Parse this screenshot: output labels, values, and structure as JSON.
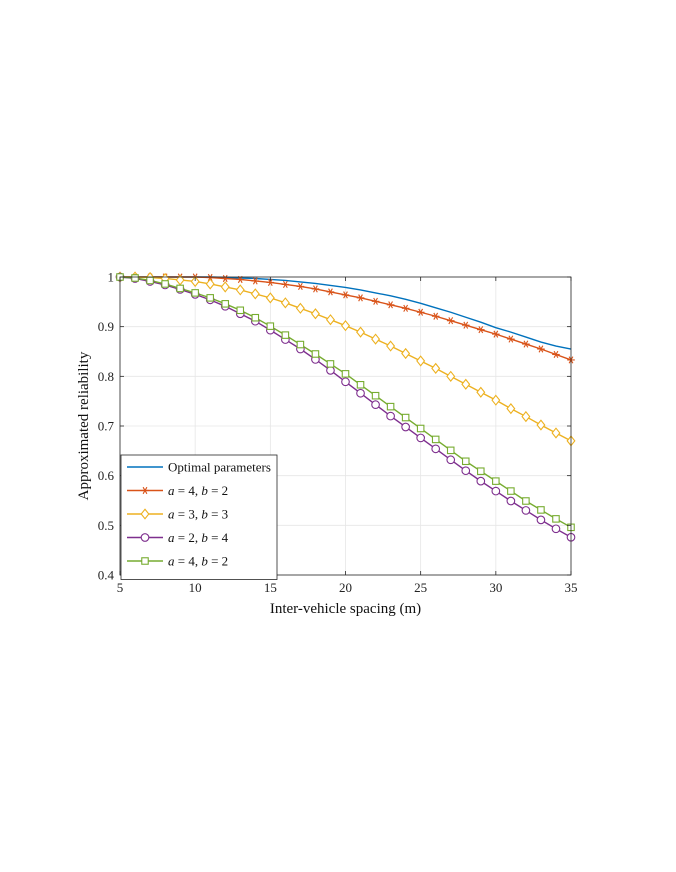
{
  "chart_data": {
    "type": "line",
    "title": "",
    "xlabel": "Inter-vehicle spacing (m)",
    "ylabel": "Approximated reliability",
    "xlim": [
      5,
      35
    ],
    "ylim": [
      0.4,
      1
    ],
    "xticks": [
      5,
      10,
      15,
      20,
      25,
      30,
      35
    ],
    "xtick_labels": [
      "5",
      "10",
      "15",
      "20",
      "25",
      "30",
      "35"
    ],
    "yticks": [
      0.4,
      0.5,
      0.6,
      0.7,
      0.8,
      0.9,
      1
    ],
    "ytick_labels": [
      "0.4",
      "0.5",
      "0.6",
      "0.7",
      "0.8",
      "0.9",
      "1"
    ],
    "grid": true,
    "legend_position": "bottom-left",
    "series": [
      {
        "name": "Optimal parameters",
        "label": "Optimal parameters",
        "marker": "none",
        "color": "#0072BD",
        "x": [
          5,
          6,
          7,
          8,
          9,
          10,
          11,
          12,
          13,
          14,
          15,
          16,
          17,
          18,
          19,
          20,
          21,
          22,
          23,
          24,
          25,
          26,
          27,
          28,
          29,
          30,
          31,
          32,
          33,
          34,
          35
        ],
        "y": [
          1,
          1,
          1,
          1,
          1,
          1,
          1,
          0.999,
          0.998,
          0.997,
          0.995,
          0.993,
          0.99,
          0.987,
          0.983,
          0.979,
          0.974,
          0.968,
          0.962,
          0.955,
          0.947,
          0.938,
          0.929,
          0.919,
          0.909,
          0.898,
          0.889,
          0.879,
          0.869,
          0.861,
          0.855
        ]
      },
      {
        "name": "a = 4, b = 2",
        "label_parts": [
          "a",
          " = 4, ",
          "b",
          " = 2"
        ],
        "marker": "asterisk",
        "color": "#D95319",
        "x": [
          5,
          6,
          7,
          8,
          9,
          10,
          11,
          12,
          13,
          14,
          15,
          16,
          17,
          18,
          19,
          20,
          21,
          22,
          23,
          24,
          25,
          26,
          27,
          28,
          29,
          30,
          31,
          32,
          33,
          34,
          35
        ],
        "y": [
          1,
          1,
          1,
          1,
          1,
          1,
          0.999,
          0.997,
          0.995,
          0.992,
          0.989,
          0.985,
          0.981,
          0.976,
          0.97,
          0.964,
          0.958,
          0.951,
          0.944,
          0.937,
          0.929,
          0.921,
          0.912,
          0.903,
          0.894,
          0.885,
          0.875,
          0.865,
          0.855,
          0.844,
          0.833
        ]
      },
      {
        "name": "a = 3, b = 3",
        "label_parts": [
          "a",
          " = 3, ",
          "b",
          " = 3"
        ],
        "marker": "diamond",
        "color": "#EDB120",
        "x": [
          5,
          6,
          7,
          8,
          9,
          10,
          11,
          12,
          13,
          14,
          15,
          16,
          17,
          18,
          19,
          20,
          21,
          22,
          23,
          24,
          25,
          26,
          27,
          28,
          29,
          30,
          31,
          32,
          33,
          34,
          35
        ],
        "y": [
          1,
          1,
          0.999,
          0.997,
          0.994,
          0.991,
          0.986,
          0.98,
          0.974,
          0.966,
          0.958,
          0.948,
          0.937,
          0.926,
          0.914,
          0.902,
          0.889,
          0.875,
          0.861,
          0.846,
          0.831,
          0.816,
          0.8,
          0.784,
          0.768,
          0.752,
          0.735,
          0.719,
          0.702,
          0.686,
          0.67
        ]
      },
      {
        "name": "a = 2, b = 4",
        "label_parts": [
          "a",
          " = 2, ",
          "b",
          " = 4"
        ],
        "marker": "circle",
        "color": "#7E2F8E",
        "x": [
          5,
          6,
          7,
          8,
          9,
          10,
          11,
          12,
          13,
          14,
          15,
          16,
          17,
          18,
          19,
          20,
          21,
          22,
          23,
          24,
          25,
          26,
          27,
          28,
          29,
          30,
          31,
          32,
          33,
          34,
          35
        ],
        "y": [
          1,
          0.997,
          0.991,
          0.984,
          0.975,
          0.965,
          0.954,
          0.941,
          0.926,
          0.911,
          0.893,
          0.874,
          0.855,
          0.834,
          0.812,
          0.789,
          0.766,
          0.743,
          0.72,
          0.698,
          0.676,
          0.654,
          0.632,
          0.61,
          0.589,
          0.569,
          0.549,
          0.53,
          0.511,
          0.493,
          0.476
        ]
      },
      {
        "name": "a = 4, b = 2",
        "label_parts": [
          "a",
          " = 4, ",
          "b",
          " = 2"
        ],
        "marker": "square",
        "color": "#77AC30",
        "x": [
          5,
          6,
          7,
          8,
          9,
          10,
          11,
          12,
          13,
          14,
          15,
          16,
          17,
          18,
          19,
          20,
          21,
          22,
          23,
          24,
          25,
          26,
          27,
          28,
          29,
          30,
          31,
          32,
          33,
          34,
          35
        ],
        "y": [
          1,
          0.998,
          0.993,
          0.986,
          0.977,
          0.968,
          0.958,
          0.946,
          0.933,
          0.918,
          0.901,
          0.883,
          0.864,
          0.845,
          0.825,
          0.805,
          0.783,
          0.761,
          0.739,
          0.717,
          0.695,
          0.673,
          0.651,
          0.629,
          0.609,
          0.589,
          0.569,
          0.549,
          0.531,
          0.513,
          0.496
        ]
      }
    ]
  }
}
